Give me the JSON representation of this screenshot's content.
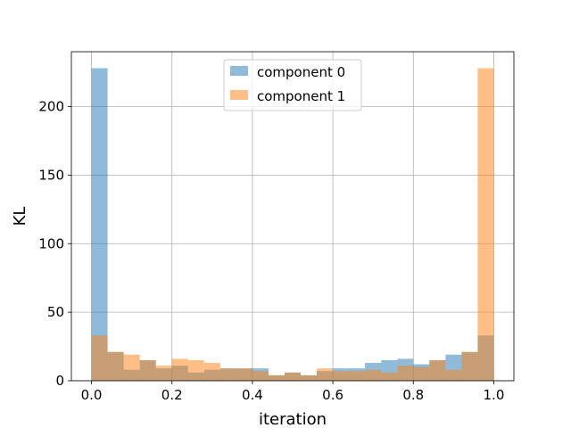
{
  "chart_data": {
    "type": "histogram",
    "xlabel": "iteration",
    "ylabel": "KL",
    "xlim": [
      -0.05,
      1.05
    ],
    "ylim": [
      0,
      240
    ],
    "xticks": [
      "0.0",
      "0.2",
      "0.4",
      "0.6",
      "0.8",
      "1.0"
    ],
    "yticks": [
      "0",
      "50",
      "100",
      "150",
      "200"
    ],
    "grid": true,
    "legend_position": "top-center",
    "bins": [
      0.0,
      0.04,
      0.08,
      0.12,
      0.16,
      0.2,
      0.24,
      0.28,
      0.32,
      0.36,
      0.4,
      0.44,
      0.48,
      0.52,
      0.56,
      0.6,
      0.64,
      0.68,
      0.72,
      0.76,
      0.8,
      0.84,
      0.88,
      0.92,
      0.96,
      1.0
    ],
    "series": [
      {
        "name": "component 0",
        "color": "#1f77b4",
        "values": [
          228,
          21,
          8,
          15,
          9,
          11,
          6,
          8,
          9,
          9,
          9,
          4,
          6,
          4,
          7,
          9,
          9,
          13,
          15,
          16,
          12,
          15,
          19,
          21,
          33
        ]
      },
      {
        "name": "component 1",
        "color": "#ff7f0e",
        "values": [
          33,
          21,
          19,
          15,
          11,
          16,
          15,
          13,
          9,
          9,
          7,
          4,
          6,
          4,
          9,
          7,
          7,
          8,
          6,
          11,
          10,
          15,
          8,
          21,
          228
        ]
      }
    ]
  }
}
